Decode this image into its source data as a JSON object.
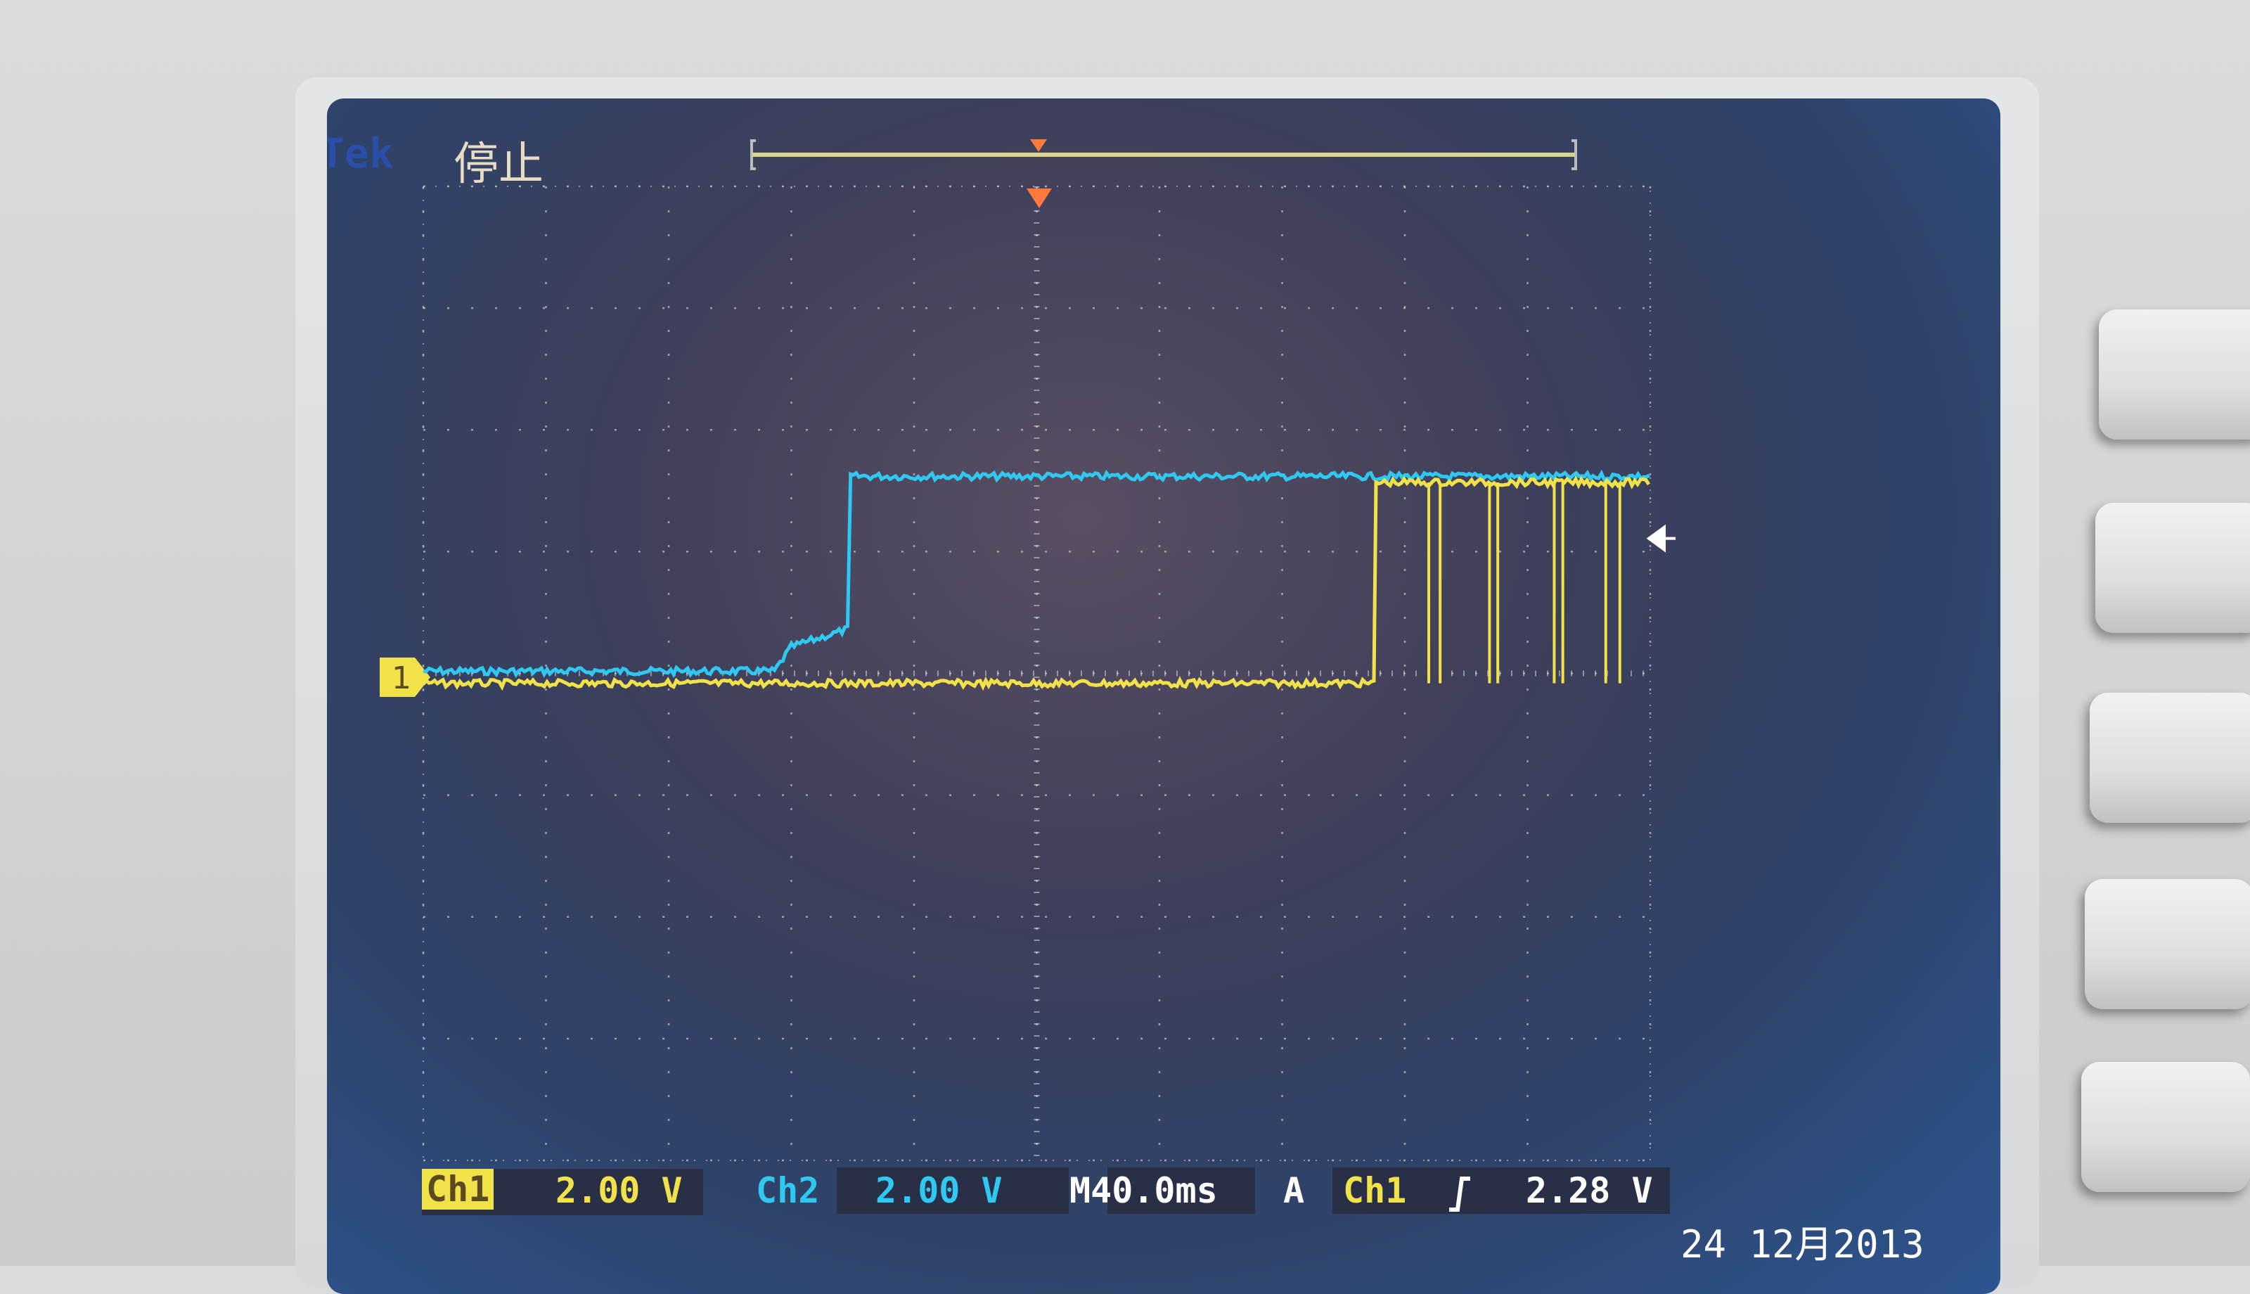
{
  "status": {
    "brand": "Tek",
    "run_state": "停止"
  },
  "readout": {
    "ch1_label": "Ch1",
    "ch1_scale": "2.00 V",
    "ch2_label": "Ch2",
    "ch2_scale": "2.00 V",
    "timebase": "M40.0ms",
    "trigger_mode": "A",
    "trigger_source": "Ch1",
    "trigger_slope_icon": "rising-edge-icon",
    "trigger_level": "2.28 V"
  },
  "date": "24 12月2013",
  "channel_marker": "1",
  "colors": {
    "ch1": "#f2e24a",
    "ch2": "#2ec8f0",
    "grid": "#c8c8d0",
    "trigger_marker": "#ff7a3c"
  },
  "chart_data": {
    "type": "line",
    "x_unit": "ms",
    "y_unit": "V",
    "xlim": [
      -200,
      200
    ],
    "ylim": [
      -8,
      8
    ],
    "x_divisions": 10,
    "y_divisions": 8,
    "grid": true,
    "series": [
      {
        "name": "Ch1",
        "points": [
          [
            -200,
            -0.1
          ],
          [
            110.6,
            -0.1
          ],
          [
            110.6,
            3.2
          ],
          [
            200,
            3.2
          ]
        ],
        "dropouts_ms": [
          127.8,
          131.5,
          147.6,
          150.3,
          168.7,
          171.5,
          185.5,
          190.1
        ]
      },
      {
        "name": "Ch2",
        "points": [
          [
            -200,
            0.1
          ],
          [
            -85.5,
            0.1
          ],
          [
            -80,
            0.5
          ],
          [
            -61,
            0.8
          ],
          [
            -60.7,
            3.3
          ],
          [
            200,
            3.3
          ]
        ]
      }
    ],
    "trigger_level_v": 2.28
  },
  "side_buttons": 5
}
